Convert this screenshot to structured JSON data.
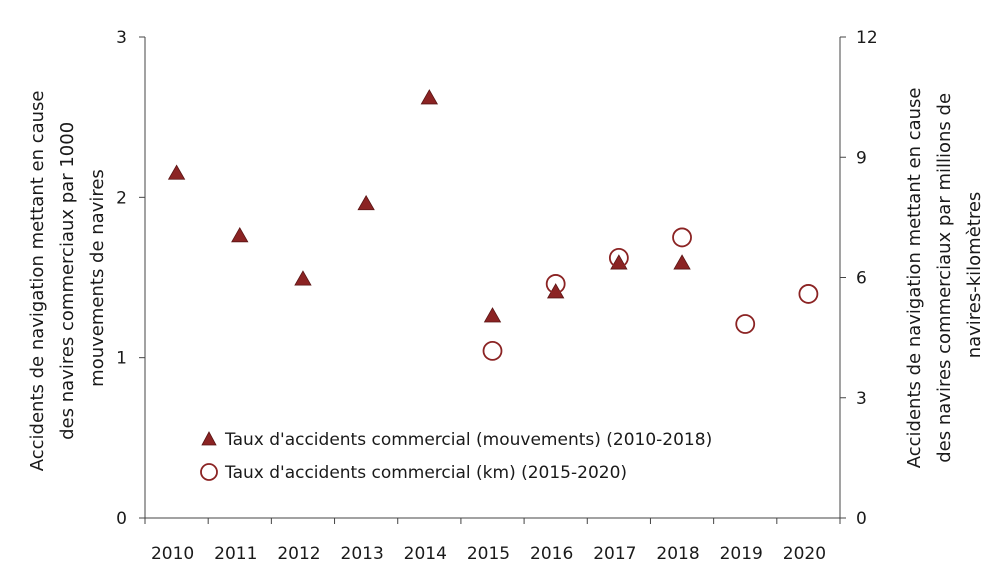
{
  "chart_data": {
    "type": "scatter",
    "title": "",
    "categories": [
      "2010",
      "2011",
      "2012",
      "2013",
      "2014",
      "2015",
      "2016",
      "2017",
      "2018",
      "2019",
      "2020"
    ],
    "y_left": {
      "label_lines": [
        "Accidents de navigation mettant en cause",
        "des navires commerciaux par 1000",
        "mouvements de navires"
      ],
      "ylim": [
        0,
        3
      ],
      "ticks": [
        "0",
        "1",
        "2",
        "3"
      ]
    },
    "y_right": {
      "label_lines": [
        "Accidents de navigation mettant en cause",
        "des navires commerciaux par millions de",
        "navires-kilomètres"
      ],
      "ylim": [
        0,
        12
      ],
      "ticks": [
        "0",
        "3",
        "6",
        "9",
        "12"
      ]
    },
    "series": [
      {
        "name": "Taux d'accidents commercial (mouvements) (2010-2018)",
        "axis": "left",
        "marker": "triangle",
        "color": "#8b2323",
        "points": [
          {
            "x": "2010",
            "y": 2.15
          },
          {
            "x": "2011",
            "y": 1.76
          },
          {
            "x": "2012",
            "y": 1.49
          },
          {
            "x": "2013",
            "y": 1.96
          },
          {
            "x": "2014",
            "y": 2.62
          },
          {
            "x": "2015",
            "y": 1.26
          },
          {
            "x": "2016",
            "y": 1.41
          },
          {
            "x": "2017",
            "y": 1.59
          },
          {
            "x": "2018",
            "y": 1.59
          }
        ]
      },
      {
        "name": "Taux d'accidents commercial (km) (2015-2020)",
        "axis": "right",
        "marker": "circle-open",
        "color": "#8b2323",
        "points": [
          {
            "x": "2015",
            "y": 4.17
          },
          {
            "x": "2016",
            "y": 5.84
          },
          {
            "x": "2017",
            "y": 6.49
          },
          {
            "x": "2018",
            "y": 7.0
          },
          {
            "x": "2019",
            "y": 4.84
          },
          {
            "x": "2020",
            "y": 5.59
          }
        ]
      }
    ],
    "legend_position": "bottom-left (inside plot)",
    "grid": false
  }
}
